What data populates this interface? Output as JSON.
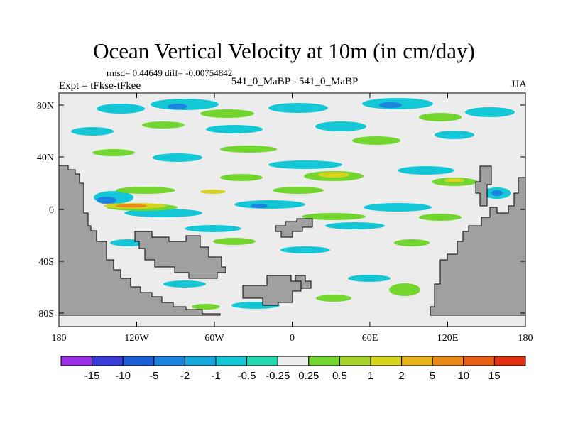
{
  "header": {
    "title": "Ocean Vertical Velocity at 10m (in cm/day)",
    "stats": "rmsd= 0.44649 diff= -0.00754842",
    "experiment": "Expt = tFkse-tFkee",
    "comparison": "541_0_MaBP - 541_0_MaBP",
    "season": "JJA"
  },
  "axes": {
    "longitude_ticks": [
      "180",
      "120W",
      "60W",
      "0",
      "60E",
      "120E",
      "180"
    ],
    "latitude_ticks": [
      "80N",
      "40N",
      "0",
      "40S",
      "80S"
    ]
  },
  "colorbar": {
    "labels": [
      "-15",
      "-10",
      "-5",
      "-2",
      "-1",
      "-0.5",
      "-0.25",
      "0.25",
      "0.5",
      "1",
      "2",
      "5",
      "10",
      "15"
    ],
    "colors": [
      "#9b2fe6",
      "#3b3ddb",
      "#1a5fd8",
      "#1b84e0",
      "#16a9e0",
      "#13c7d6",
      "#22d9b0",
      "#ececec",
      "#72d62f",
      "#a6d42a",
      "#d6d21e",
      "#e8b21b",
      "#ec8a19",
      "#e85e14",
      "#e03010"
    ]
  },
  "map_colors": {
    "ocean": "#ececec",
    "land": "#a0a0a0",
    "outline": "#000000"
  }
}
